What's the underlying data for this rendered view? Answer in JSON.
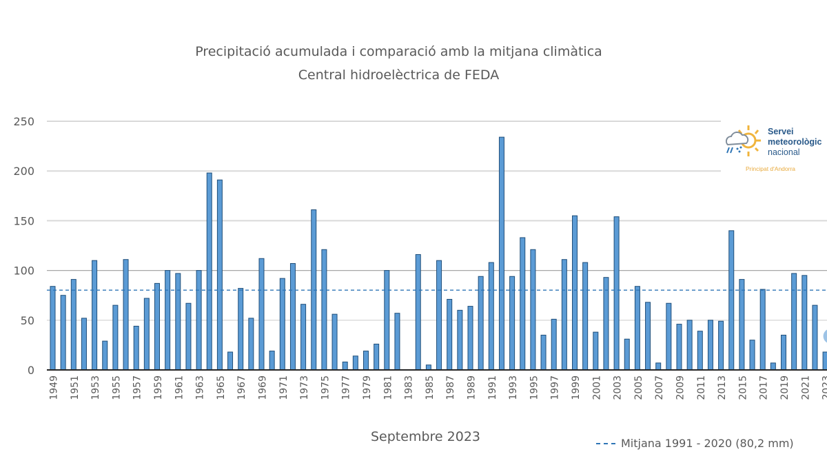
{
  "title_line1": "Precipitació acumulada i comparació amb la mitjana climàtica",
  "title_line2": "Central hidroelèctrica de FEDA",
  "logo": {
    "line1": "Servei",
    "line2": "meteorològic",
    "line3": "nacional",
    "subtitle": "Principat d'Andorra",
    "icon": "sun-cloud-rain-icon"
  },
  "chart_data": {
    "type": "bar",
    "title": "Precipitació acumulada i comparació amb la mitjana climàtica Central hidroelèctrica de FEDA",
    "xlabel": "Septembre 2023",
    "ylabel": "",
    "ylim": [
      0,
      250
    ],
    "yticks": [
      0,
      50,
      100,
      150,
      200,
      250
    ],
    "grid": true,
    "bar_color": "#5b9bd5",
    "bar_edge_color": "#1f4e79",
    "categories": [
      1949,
      1950,
      1951,
      1952,
      1953,
      1954,
      1955,
      1956,
      1957,
      1958,
      1959,
      1960,
      1961,
      1962,
      1963,
      1964,
      1965,
      1966,
      1967,
      1968,
      1969,
      1970,
      1971,
      1972,
      1973,
      1974,
      1975,
      1976,
      1977,
      1978,
      1979,
      1980,
      1981,
      1982,
      1983,
      1984,
      1985,
      1986,
      1987,
      1988,
      1989,
      1990,
      1991,
      1992,
      1993,
      1994,
      1995,
      1996,
      1997,
      1998,
      1999,
      2000,
      2001,
      2002,
      2003,
      2004,
      2005,
      2006,
      2007,
      2008,
      2009,
      2010,
      2011,
      2012,
      2013,
      2014,
      2015,
      2016,
      2017,
      2018,
      2019,
      2020,
      2021,
      2022,
      2023
    ],
    "values": [
      84,
      75,
      91,
      52,
      110,
      29,
      65,
      111,
      44,
      72,
      87,
      100,
      97,
      67,
      100,
      198,
      191,
      18,
      82,
      52,
      112,
      19,
      92,
      107,
      66,
      161,
      121,
      56,
      8,
      14,
      19,
      26,
      100,
      57,
      0,
      116,
      5,
      110,
      71,
      60,
      64,
      94,
      108,
      234,
      94,
      133,
      121,
      35,
      51,
      111,
      155,
      108,
      38,
      93,
      154,
      31,
      84,
      68,
      7,
      67,
      46,
      50,
      39,
      50,
      49,
      140,
      91,
      30,
      81,
      7,
      35,
      97,
      95,
      65,
      18
    ],
    "reference_line": {
      "name": "Mitjana 1991 - 2020 (80,2 mm)",
      "value": 80.2,
      "style": "dashed",
      "color": "#2e75b6"
    },
    "legend_position": "bottom-right",
    "annotation_2023": "1"
  }
}
